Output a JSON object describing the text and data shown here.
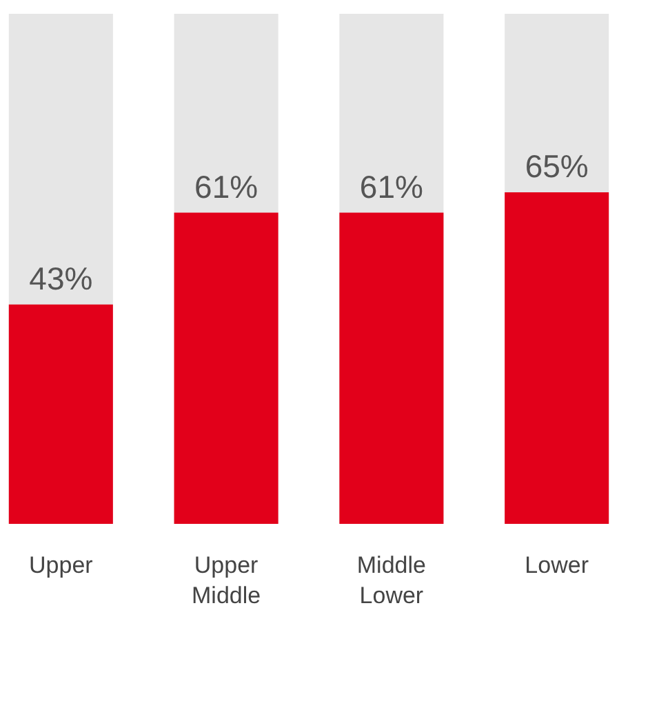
{
  "chart_data": {
    "type": "bar",
    "categories": [
      "Upper",
      "Upper Middle",
      "Middle Lower",
      "Lower"
    ],
    "series": [
      {
        "color": "#e2001a",
        "values": [
          43,
          61,
          61,
          65
        ],
        "value_labels": [
          "43%",
          "61%",
          "61%",
          "65%"
        ]
      }
    ],
    "ylim": [
      0,
      100
    ],
    "tick_labels": "x"
  }
}
